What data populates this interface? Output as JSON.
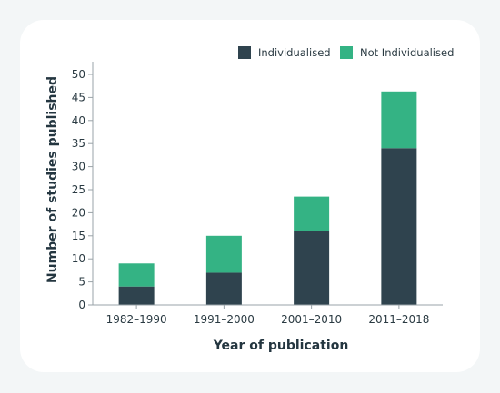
{
  "chart_data": {
    "type": "bar",
    "stacked": true,
    "categories": [
      "1982–1990",
      "1991–2000",
      "2001–2010",
      "2011–2018"
    ],
    "series": [
      {
        "name": "Individualised",
        "color": "#2f434e",
        "values": [
          4,
          7,
          16,
          34
        ]
      },
      {
        "name": "Not Individualised",
        "color": "#34b384",
        "values": [
          5,
          8,
          7.5,
          12.3
        ]
      }
    ],
    "xlabel": "Year of publication",
    "ylabel": "Number of studies published",
    "ylim": [
      0,
      50
    ],
    "yticks": [
      0,
      5,
      10,
      15,
      20,
      25,
      30,
      35,
      40,
      45,
      50
    ],
    "legend_position": "top-right",
    "grid": false
  }
}
